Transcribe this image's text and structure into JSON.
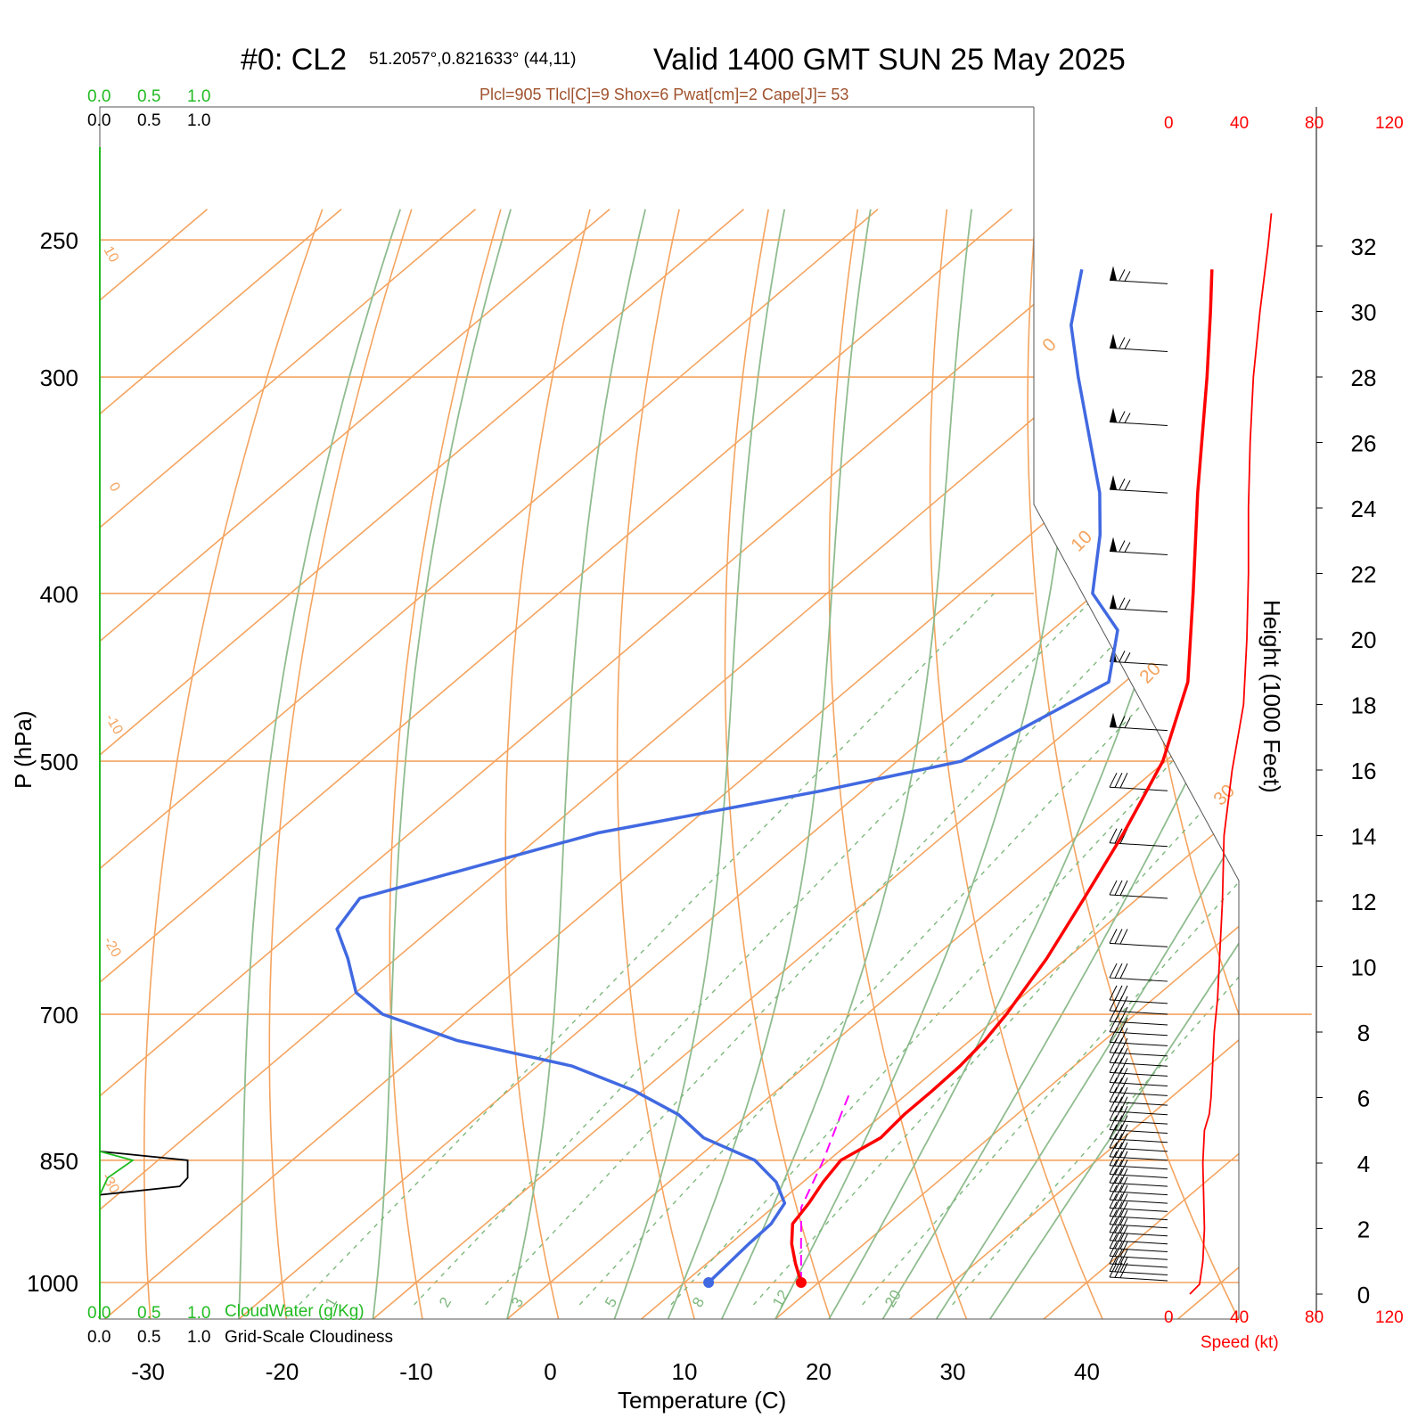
{
  "header": {
    "station": "#0: CL2",
    "coords": "51.2057°,0.821633° (44,11)",
    "valid": "Valid 1400 GMT SUN 25 May 2025",
    "indices": "Plcl=905 Tlcl[C]=9 Shox=6 Pwat[cm]=2 Cape[J]= 53"
  },
  "colors": {
    "temperature": "#ff0000",
    "dewpoint": "#4169e1",
    "parcel": "#ff00ff",
    "isotherm_isobar": "#f4a460",
    "adiabat": "#8fbc8f",
    "mixing_ratio": "#7cb87c",
    "cloudwater": "#22bb22",
    "cloudiness": "#000000",
    "speed": "#ff0000"
  },
  "chart_data": {
    "type": "skew-t log-p",
    "xlabel": "Temperature (C)",
    "ylabel": "P (hPa)",
    "right_label": "Height (1000 Feet)",
    "x_ticks": [
      -30,
      -20,
      -10,
      0,
      10,
      20,
      30,
      40
    ],
    "pressure_ticks": [
      250,
      300,
      400,
      500,
      700,
      850,
      1000
    ],
    "height_ticks": [
      0,
      2,
      4,
      6,
      8,
      10,
      12,
      14,
      16,
      18,
      20,
      22,
      24,
      26,
      28,
      30,
      32
    ],
    "isotherm_labels": [
      "10",
      "0",
      "-10",
      "-20",
      "-30",
      "0",
      "10",
      "20",
      "30"
    ],
    "mixing_ratio_labels": [
      "1",
      "2",
      "3",
      "5",
      "8",
      "12",
      "20"
    ],
    "temperature_profile": [
      {
        "p": 1000,
        "t": 18.7
      },
      {
        "p": 975,
        "t": 16.6
      },
      {
        "p": 950,
        "t": 14.6
      },
      {
        "p": 925,
        "t": 12.9
      },
      {
        "p": 900,
        "t": 12.3
      },
      {
        "p": 875,
        "t": 11.5
      },
      {
        "p": 850,
        "t": 10.9
      },
      {
        "p": 840,
        "t": 11.3
      },
      {
        "p": 825,
        "t": 11.9
      },
      {
        "p": 800,
        "t": 11.6
      },
      {
        "p": 775,
        "t": 11.6
      },
      {
        "p": 750,
        "t": 11.5
      },
      {
        "p": 725,
        "t": 11.1
      },
      {
        "p": 700,
        "t": 10.4
      },
      {
        "p": 650,
        "t": 8.5
      },
      {
        "p": 600,
        "t": 6.0
      },
      {
        "p": 550,
        "t": 3.2
      },
      {
        "p": 500,
        "t": -0.2
      },
      {
        "p": 450,
        "t": -5.3
      },
      {
        "p": 400,
        "t": -12.7
      },
      {
        "p": 350,
        "t": -21.2
      },
      {
        "p": 300,
        "t": -30.7
      },
      {
        "p": 275,
        "t": -36.2
      },
      {
        "p": 260,
        "t": -39.8
      }
    ],
    "dewpoint_profile": [
      {
        "p": 1000,
        "t": 11.8
      },
      {
        "p": 975,
        "t": 11.6
      },
      {
        "p": 950,
        "t": 11.4
      },
      {
        "p": 925,
        "t": 11.3
      },
      {
        "p": 900,
        "t": 10.5
      },
      {
        "p": 875,
        "t": 8.0
      },
      {
        "p": 850,
        "t": 4.5
      },
      {
        "p": 825,
        "t": -1.3
      },
      {
        "p": 800,
        "t": -5.2
      },
      {
        "p": 775,
        "t": -10.6
      },
      {
        "p": 750,
        "t": -17.4
      },
      {
        "p": 725,
        "t": -28.2
      },
      {
        "p": 700,
        "t": -36.1
      },
      {
        "p": 680,
        "t": -40.0
      },
      {
        "p": 650,
        "t": -43.6
      },
      {
        "p": 625,
        "t": -47.0
      },
      {
        "p": 600,
        "t": -48.0
      },
      {
        "p": 550,
        "t": -36.0
      },
      {
        "p": 520,
        "t": -23.0
      },
      {
        "p": 500,
        "t": -15.2
      },
      {
        "p": 450,
        "t": -11.2
      },
      {
        "p": 420,
        "t": -15.1
      },
      {
        "p": 400,
        "t": -20.2
      },
      {
        "p": 370,
        "t": -24.8
      },
      {
        "p": 350,
        "t": -28.5
      },
      {
        "p": 300,
        "t": -40.3
      },
      {
        "p": 280,
        "t": -45.4
      },
      {
        "p": 260,
        "t": -49.5
      }
    ],
    "parcel_profile": [
      {
        "p": 1000,
        "t": 18.7
      },
      {
        "p": 950,
        "t": 15.3
      },
      {
        "p": 905,
        "t": 12.1
      },
      {
        "p": 850,
        "t": 9.6
      },
      {
        "p": 800,
        "t": 6.9
      },
      {
        "p": 780,
        "t": 5.8
      }
    ],
    "cloudwater": {
      "label": "CloudWater (g/Kg)",
      "ticks": [
        "0.0",
        "0.5",
        "1.0"
      ],
      "profile": [
        {
          "p": 840,
          "v": 0.0
        },
        {
          "p": 850,
          "v": 0.33
        },
        {
          "p": 870,
          "v": 0.08
        },
        {
          "p": 890,
          "v": 0.0
        }
      ]
    },
    "cloudiness": {
      "label": "Grid-Scale Cloudiness",
      "ticks": [
        "0.0",
        "0.5",
        "1.0"
      ],
      "profile": [
        {
          "p": 840,
          "v": 0.0
        },
        {
          "p": 850,
          "v": 0.88
        },
        {
          "p": 870,
          "v": 0.88
        },
        {
          "p": 880,
          "v": 0.8
        },
        {
          "p": 890,
          "v": 0.0
        }
      ]
    },
    "wind_speed": {
      "label": "Speed (kt)",
      "ticks": [
        "0",
        "40",
        "80",
        "120"
      ],
      "profile": [
        {
          "h": 0,
          "s": 12
        },
        {
          "h": 0.3,
          "s": 18
        },
        {
          "h": 1,
          "s": 20
        },
        {
          "h": 2,
          "s": 21
        },
        {
          "h": 4,
          "s": 20
        },
        {
          "h": 5,
          "s": 21
        },
        {
          "h": 5.5,
          "s": 24
        },
        {
          "h": 6,
          "s": 25
        },
        {
          "h": 7,
          "s": 26
        },
        {
          "h": 8,
          "s": 27
        },
        {
          "h": 9,
          "s": 29
        },
        {
          "h": 10,
          "s": 30
        },
        {
          "h": 12,
          "s": 32
        },
        {
          "h": 14,
          "s": 33
        },
        {
          "h": 16,
          "s": 38
        },
        {
          "h": 18,
          "s": 45
        },
        {
          "h": 20,
          "s": 47
        },
        {
          "h": 22,
          "s": 48
        },
        {
          "h": 24,
          "s": 48
        },
        {
          "h": 26,
          "s": 49
        },
        {
          "h": 28,
          "s": 51
        },
        {
          "h": 30,
          "s": 55
        },
        {
          "h": 32,
          "s": 60
        },
        {
          "h": 33,
          "s": 62
        }
      ]
    },
    "wind_barbs": {
      "pressures": [
        265,
        290,
        320,
        350,
        380,
        410,
        440,
        480,
        520,
        560,
        600,
        640,
        670,
        690,
        700,
        710,
        720,
        730,
        740,
        750,
        760,
        770,
        780,
        790,
        800,
        810,
        820,
        830,
        840,
        850,
        860,
        870,
        880,
        890,
        900,
        910,
        920,
        930,
        940,
        950,
        960,
        970,
        980,
        990,
        1000
      ],
      "flags": [
        265,
        290,
        320,
        350,
        380,
        410,
        440,
        480
      ]
    }
  }
}
